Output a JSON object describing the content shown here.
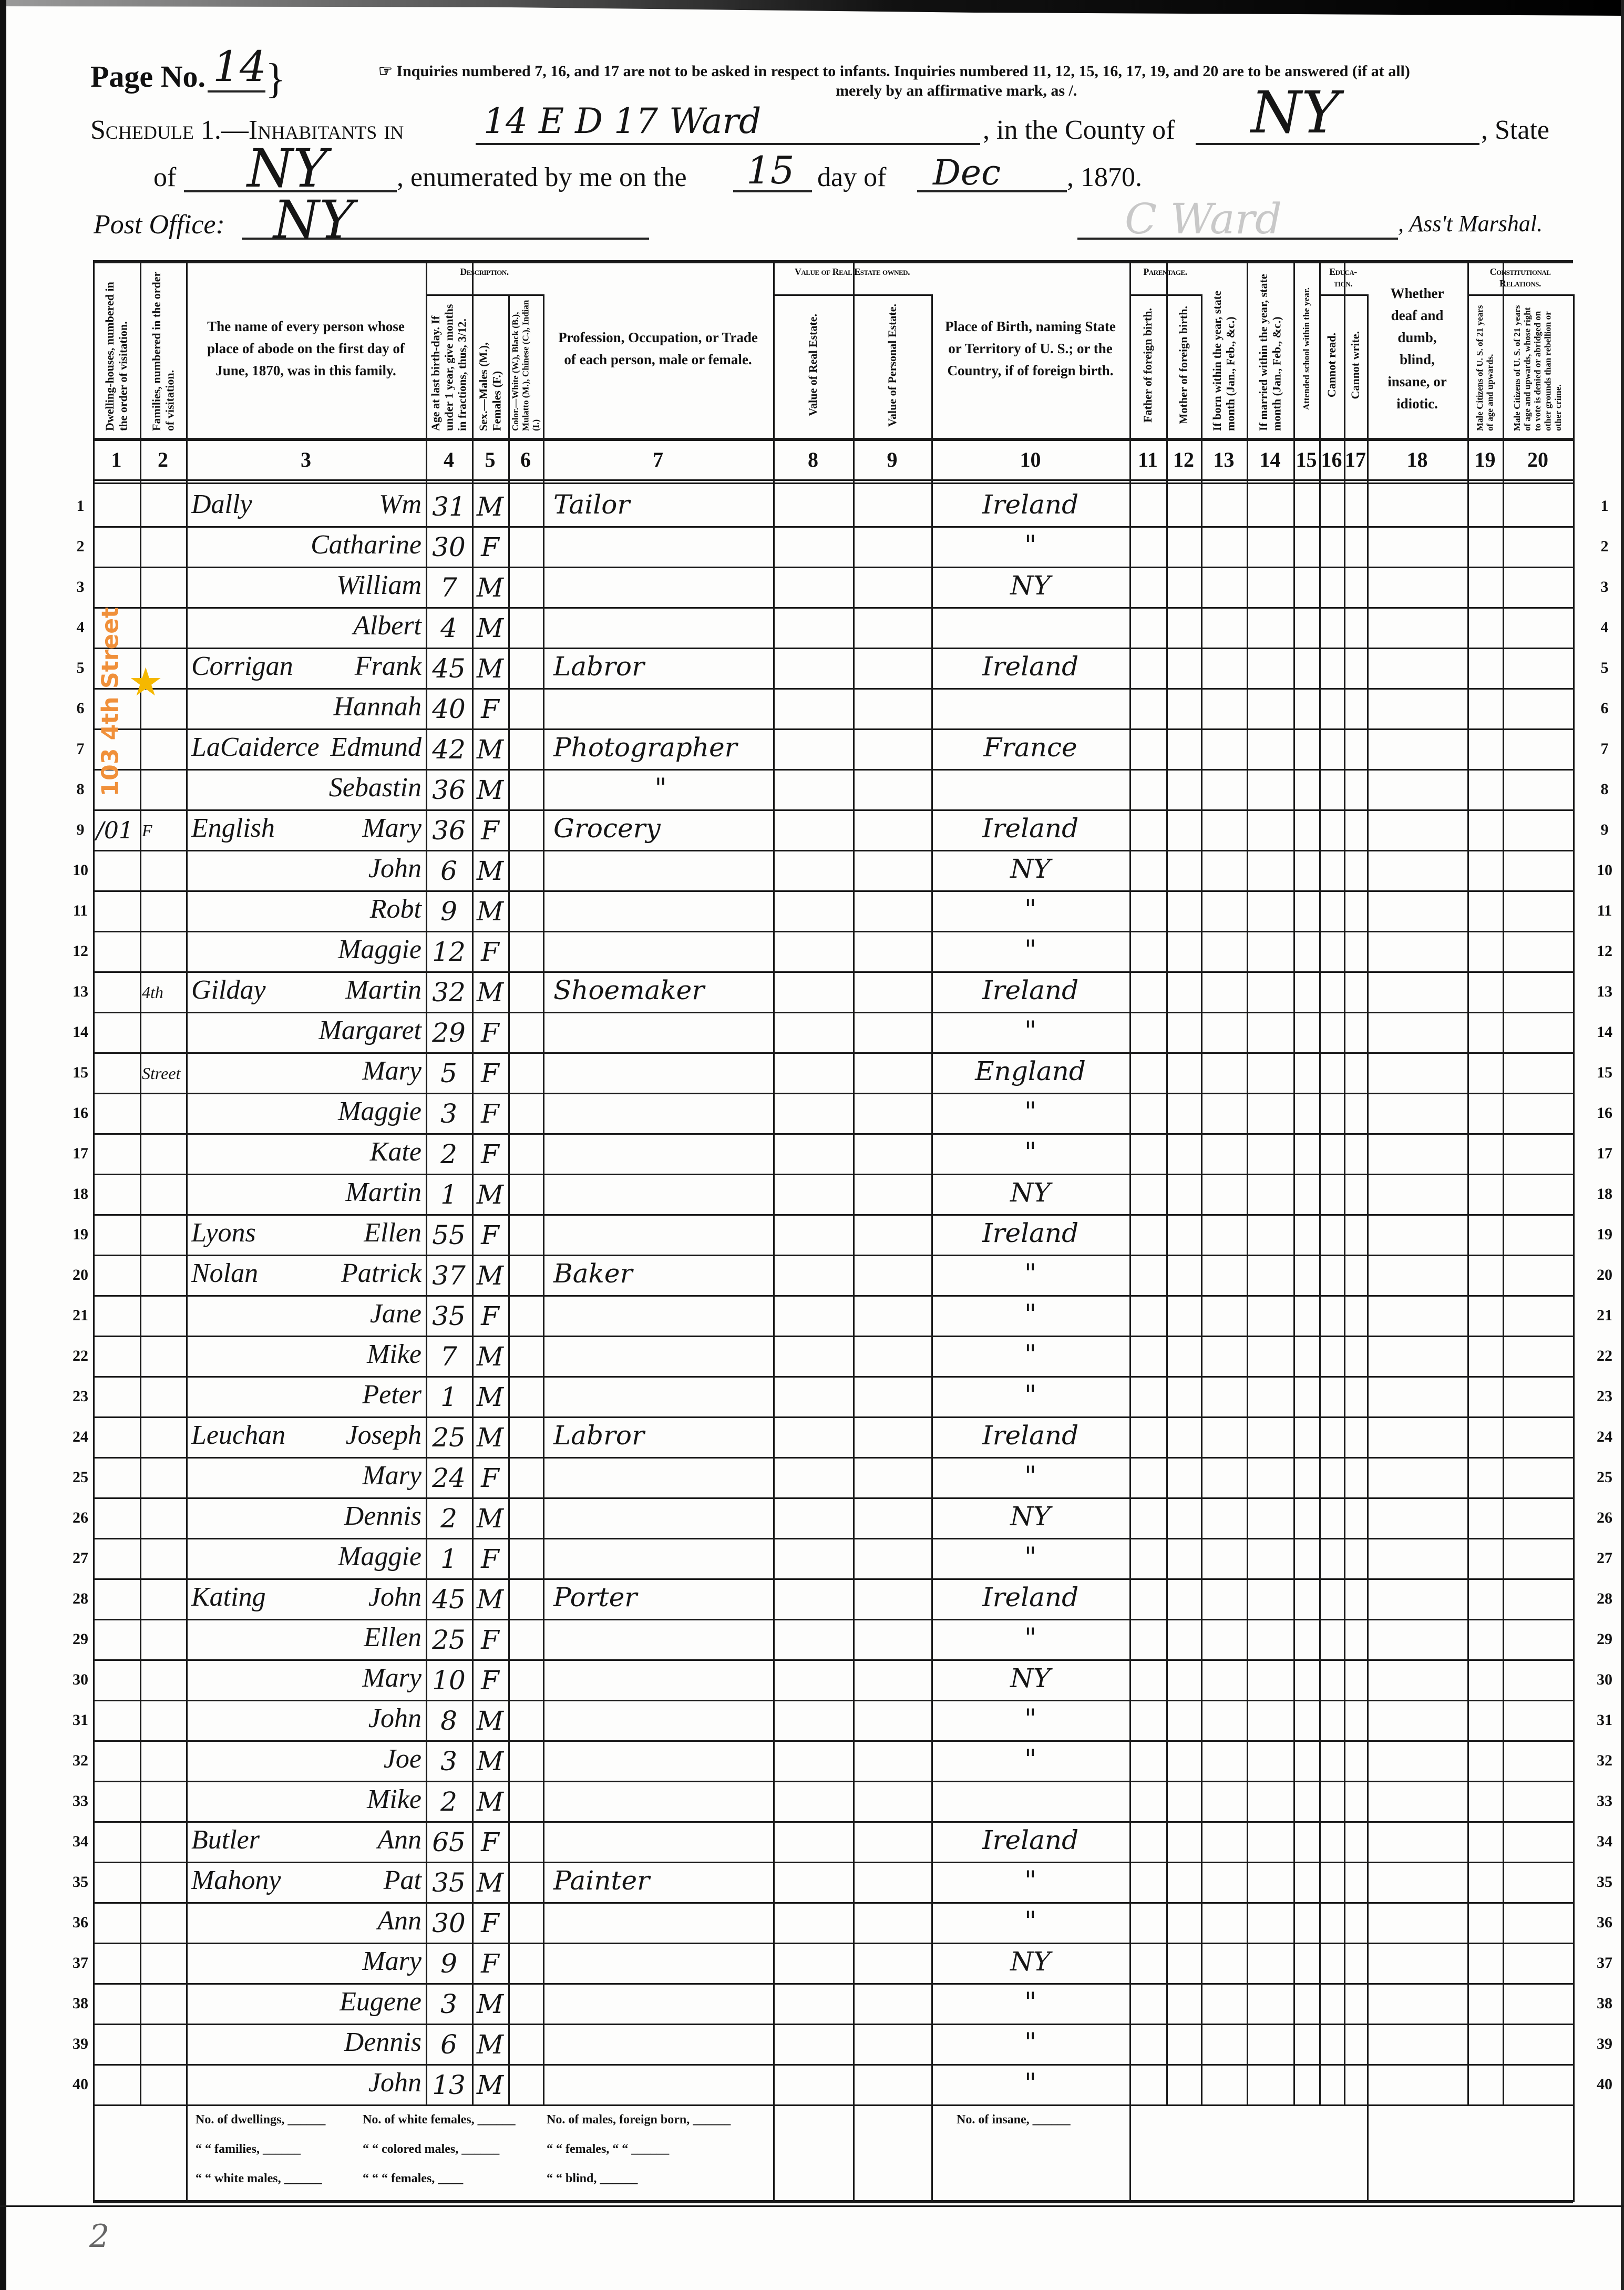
{
  "header": {
    "page_label": "Page No.",
    "page_number": "14",
    "notice_line1": "☞ Inquiries numbered 7, 16, and 17 are not to be asked in respect to infants.  Inquiries numbered 11, 12, 15, 16, 17, 19, and 20 are to be answered (if at all)",
    "notice_line2": "merely by an affirmative mark, as /.",
    "schedule_label": "Schedule 1.—Inhabitants in",
    "inhabitants_in": "14 E D 17 Ward",
    "county_label": ", in the County of",
    "county": "NY",
    "state_label": ", State",
    "of_label": "of",
    "state": "NY",
    "enumerated_label": ", enumerated by me on the",
    "day": "15",
    "day_of_label": "day of",
    "month": "Dec",
    "year_label": ", 1870.",
    "post_office_label": "Post Office:",
    "post_office": "NY",
    "marshal_signature": "C Ward",
    "marshal_label": ", Ass't Marshal."
  },
  "annotation": {
    "text": "103  4th Street",
    "star_color": "#f5b800",
    "text_color": "#f0903a"
  },
  "columns": {
    "group_headers": [
      "Description.",
      "Value of Real Estate owned.",
      "Parentage.",
      "Educa-tion.",
      "Constitutional Relations."
    ],
    "headers": [
      "Dwelling-houses, numbered in the order of visitation.",
      "Families, numbered in the order of visitation.",
      "The name of every person whose place of abode on the first day of June, 1870, was in this family.",
      "Age at last birth-day. If under 1 year, give months in fractions, thus, 3/12.",
      "Sex.—Males (M.), Females (F.)",
      "Color.—White (W.), Black (B.), Mulatto (M.), Chinese (C.), Indian (I.)",
      "Profession, Occupation, or Trade of each person, male or female.",
      "Value of Real Estate.",
      "Value of Personal Estate.",
      "Place of Birth, naming State or Territory of U. S.; or the Country, if of foreign birth.",
      "Father of foreign birth.",
      "Mother of foreign birth.",
      "If born within the year, state month (Jan., Feb., &c.)",
      "If married within the year, state month (Jan., Feb., &c.)",
      "Attended school within the year.",
      "Cannot read.",
      "Cannot write.",
      "Whether deaf and dumb, blind, insane, or idiotic.",
      "Male Citizens of U. S. of 21 years of age and upwards.",
      "Male Citizens of U. S. of 21 years of age and upwards, whose right to vote is denied or abridged on other grounds than rebellion or other crime."
    ],
    "numbers": [
      "1",
      "2",
      "3",
      "4",
      "5",
      "6",
      "7",
      "8",
      "9",
      "10",
      "11",
      "12",
      "13",
      "14",
      "15",
      "16",
      "17",
      "18",
      "19",
      "20"
    ]
  },
  "rows": [
    {
      "n": "1",
      "surname": "Dally",
      "given": "Wm",
      "age": "31",
      "sex": "M",
      "occupation": "Tailor",
      "birthplace": "Ireland"
    },
    {
      "n": "2",
      "given": "Catharine",
      "age": "30",
      "sex": "F",
      "birthplace": "\""
    },
    {
      "n": "3",
      "given": "William",
      "age": "7",
      "sex": "M",
      "birthplace": "NY"
    },
    {
      "n": "4",
      "given": "Albert",
      "age": "4",
      "sex": "M"
    },
    {
      "n": "5",
      "surname": "Corrigan",
      "given": "Frank",
      "age": "45",
      "sex": "M",
      "occupation": "Labror",
      "birthplace": "Ireland"
    },
    {
      "n": "6",
      "given": "Hannah",
      "age": "40",
      "sex": "F"
    },
    {
      "n": "7",
      "surname": "LaCaiderce",
      "given": "Edmund",
      "age": "42",
      "sex": "M",
      "occupation": "Photographer",
      "birthplace": "France"
    },
    {
      "n": "8",
      "given": "Sebastin",
      "age": "36",
      "sex": "M",
      "occupation": "\""
    },
    {
      "n": "9",
      "dwelling": "/01",
      "family": "F",
      "surname": "English",
      "given": "Mary",
      "age": "36",
      "sex": "F",
      "occupation": "Grocery",
      "birthplace": "Ireland"
    },
    {
      "n": "10",
      "given": "John",
      "age": "6",
      "sex": "M",
      "birthplace": "NY"
    },
    {
      "n": "11",
      "given": "Robt",
      "age": "9",
      "sex": "M",
      "birthplace": "\""
    },
    {
      "n": "12",
      "given": "Maggie",
      "age": "12",
      "sex": "F",
      "birthplace": "\""
    },
    {
      "n": "13",
      "family": "4th",
      "surname": "Gilday",
      "given": "Martin",
      "age": "32",
      "sex": "M",
      "occupation": "Shoemaker",
      "birthplace": "Ireland"
    },
    {
      "n": "14",
      "given": "Margaret",
      "age": "29",
      "sex": "F",
      "birthplace": "\""
    },
    {
      "n": "15",
      "family": "Street",
      "given": "Mary",
      "age": "5",
      "sex": "F",
      "birthplace": "England"
    },
    {
      "n": "16",
      "given": "Maggie",
      "age": "3",
      "sex": "F",
      "birthplace": "\""
    },
    {
      "n": "17",
      "given": "Kate",
      "age": "2",
      "sex": "F",
      "birthplace": "\""
    },
    {
      "n": "18",
      "given": "Martin",
      "age": "1",
      "sex": "M",
      "birthplace": "NY"
    },
    {
      "n": "19",
      "surname": "Lyons",
      "given": "Ellen",
      "age": "55",
      "sex": "F",
      "birthplace": "Ireland"
    },
    {
      "n": "20",
      "surname": "Nolan",
      "given": "Patrick",
      "age": "37",
      "sex": "M",
      "occupation": "Baker",
      "birthplace": "\""
    },
    {
      "n": "21",
      "given": "Jane",
      "age": "35",
      "sex": "F",
      "birthplace": "\""
    },
    {
      "n": "22",
      "given": "Mike",
      "age": "7",
      "sex": "M",
      "birthplace": "\""
    },
    {
      "n": "23",
      "given": "Peter",
      "age": "1",
      "sex": "M",
      "birthplace": "\""
    },
    {
      "n": "24",
      "surname": "Leuchan",
      "given": "Joseph",
      "age": "25",
      "sex": "M",
      "occupation": "Labror",
      "birthplace": "Ireland"
    },
    {
      "n": "25",
      "given": "Mary",
      "age": "24",
      "sex": "F",
      "birthplace": "\""
    },
    {
      "n": "26",
      "given": "Dennis",
      "age": "2",
      "sex": "M",
      "birthplace": "NY"
    },
    {
      "n": "27",
      "given": "Maggie",
      "age": "1",
      "sex": "F",
      "birthplace": "\""
    },
    {
      "n": "28",
      "surname": "Kating",
      "given": "John",
      "age": "45",
      "sex": "M",
      "occupation": "Porter",
      "birthplace": "Ireland"
    },
    {
      "n": "29",
      "given": "Ellen",
      "age": "25",
      "sex": "F",
      "birthplace": "\""
    },
    {
      "n": "30",
      "given": "Mary",
      "age": "10",
      "sex": "F",
      "birthplace": "NY"
    },
    {
      "n": "31",
      "given": "John",
      "age": "8",
      "sex": "M",
      "birthplace": "\""
    },
    {
      "n": "32",
      "given": "Joe",
      "age": "3",
      "sex": "M",
      "birthplace": "\""
    },
    {
      "n": "33",
      "given": "Mike",
      "age": "2",
      "sex": "M"
    },
    {
      "n": "34",
      "surname": "Butler",
      "given": "Ann",
      "age": "65",
      "sex": "F",
      "birthplace": "Ireland"
    },
    {
      "n": "35",
      "surname": "Mahony",
      "given": "Pat",
      "age": "35",
      "sex": "M",
      "occupation": "Painter",
      "birthplace": "\""
    },
    {
      "n": "36",
      "given": "Ann",
      "age": "30",
      "sex": "F",
      "birthplace": "\""
    },
    {
      "n": "37",
      "given": "Mary",
      "age": "9",
      "sex": "F",
      "birthplace": "NY"
    },
    {
      "n": "38",
      "given": "Eugene",
      "age": "3",
      "sex": "M",
      "birthplace": "\""
    },
    {
      "n": "39",
      "given": "Dennis",
      "age": "6",
      "sex": "M",
      "birthplace": "\""
    },
    {
      "n": "40",
      "given": "John",
      "age": "13",
      "sex": "M",
      "birthplace": "\""
    }
  ],
  "footer": {
    "r1c1": "No. of dwellings, ______",
    "r1c2": "No. of white females, ______",
    "r1c3": "No. of males, foreign born, ______",
    "r2c1": "“  “ families, ______",
    "r2c2": "“  “ colored males, ______",
    "r2c3": "“  “ females,  “    “  ______",
    "r3c1": "“  “ white males, ______",
    "r3c2": "“  “    “  females, ____",
    "r3c3": "“  “ blind,           ______",
    "insane": "No. of insane, ______",
    "page_mark": "2"
  }
}
